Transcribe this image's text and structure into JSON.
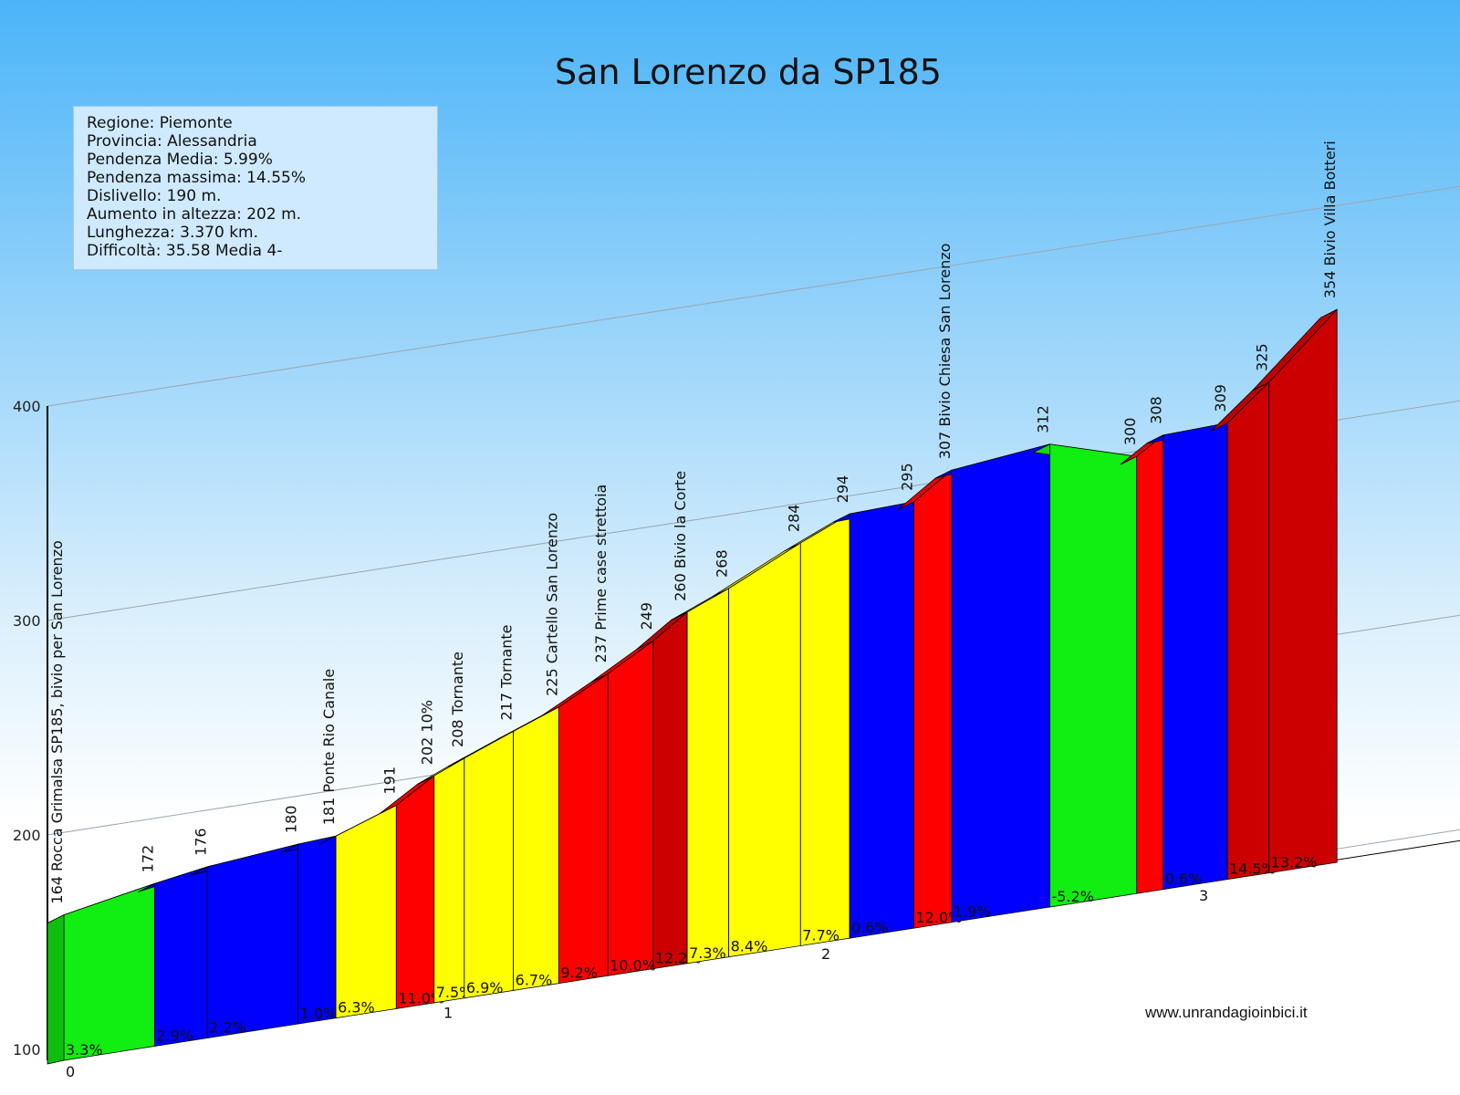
{
  "chart_data": {
    "type": "area",
    "title": "San Lorenzo da SP185",
    "y_ticks": [
      100,
      200,
      300,
      400
    ],
    "x_ticks": [
      0,
      1,
      2,
      3
    ],
    "ylim": [
      100,
      400
    ],
    "xlim": [
      0,
      3.37
    ],
    "unit_x": "km",
    "unit_y": "m",
    "colors": {
      "green": "#11ee11",
      "blue": "#0000ff",
      "yellow": "#ffff00",
      "red": "#ff0000",
      "darkred": "#cc0000",
      "sky_top": "#4cb4f8",
      "sky_bottom": "#ffffff"
    },
    "segments": [
      {
        "km_start": 0.0,
        "km_end": 0.24,
        "alt_start": 164,
        "alt_end": 172,
        "grade": "3.3%",
        "color": "green"
      },
      {
        "km_start": 0.24,
        "km_end": 0.38,
        "alt_start": 172,
        "alt_end": 176,
        "grade": "2.9%",
        "color": "blue"
      },
      {
        "km_start": 0.38,
        "km_end": 0.62,
        "alt_start": 176,
        "alt_end": 180,
        "grade": "2.2%",
        "color": "blue"
      },
      {
        "km_start": 0.62,
        "km_end": 0.72,
        "alt_start": 180,
        "alt_end": 181,
        "grade": "1.0%",
        "color": "blue"
      },
      {
        "km_start": 0.72,
        "km_end": 0.88,
        "alt_start": 181,
        "alt_end": 191,
        "grade": "6.3%",
        "color": "yellow"
      },
      {
        "km_start": 0.88,
        "km_end": 0.98,
        "alt_start": 191,
        "alt_end": 202,
        "grade": "11.0%",
        "color": "red"
      },
      {
        "km_start": 0.98,
        "km_end": 1.06,
        "alt_start": 202,
        "alt_end": 208,
        "grade": "7.5%",
        "color": "yellow"
      },
      {
        "km_start": 1.06,
        "km_end": 1.19,
        "alt_start": 208,
        "alt_end": 217,
        "grade": "6.9%",
        "color": "yellow"
      },
      {
        "km_start": 1.19,
        "km_end": 1.31,
        "alt_start": 217,
        "alt_end": 225,
        "grade": "6.7%",
        "color": "yellow"
      },
      {
        "km_start": 1.31,
        "km_end": 1.44,
        "alt_start": 225,
        "alt_end": 237,
        "grade": "9.2%",
        "color": "red"
      },
      {
        "km_start": 1.44,
        "km_end": 1.56,
        "alt_start": 237,
        "alt_end": 249,
        "grade": "10.0%",
        "color": "red"
      },
      {
        "km_start": 1.56,
        "km_end": 1.65,
        "alt_start": 249,
        "alt_end": 260,
        "grade": "12.2%",
        "color": "darkred"
      },
      {
        "km_start": 1.65,
        "km_end": 1.76,
        "alt_start": 260,
        "alt_end": 268,
        "grade": "7.3%",
        "color": "yellow"
      },
      {
        "km_start": 1.76,
        "km_end": 1.95,
        "alt_start": 268,
        "alt_end": 284,
        "grade": "8.4%",
        "color": "yellow"
      },
      {
        "km_start": 1.95,
        "km_end": 2.08,
        "alt_start": 284,
        "alt_end": 294,
        "grade": "7.7%",
        "color": "yellow"
      },
      {
        "km_start": 2.08,
        "km_end": 2.25,
        "alt_start": 294,
        "alt_end": 295,
        "grade": "0.6%",
        "color": "blue"
      },
      {
        "km_start": 2.25,
        "km_end": 2.35,
        "alt_start": 295,
        "alt_end": 307,
        "grade": "12.0%",
        "color": "red"
      },
      {
        "km_start": 2.35,
        "km_end": 2.61,
        "alt_start": 307,
        "alt_end": 312,
        "grade": "1.9%",
        "color": "blue"
      },
      {
        "km_start": 2.61,
        "km_end": 2.84,
        "alt_start": 312,
        "alt_end": 300,
        "grade": "-5.2%",
        "color": "green"
      },
      {
        "km_start": 2.84,
        "km_end": 2.91,
        "alt_start": 300,
        "alt_end": 308,
        "grade": "",
        "color": "red"
      },
      {
        "km_start": 2.91,
        "km_end": 3.08,
        "alt_start": 308,
        "alt_end": 309,
        "grade": "0.6%",
        "color": "blue"
      },
      {
        "km_start": 3.08,
        "km_end": 3.19,
        "alt_start": 309,
        "alt_end": 325,
        "grade": "14.5%",
        "color": "darkred"
      },
      {
        "km_start": 3.19,
        "km_end": 3.37,
        "alt_start": 325,
        "alt_end": 354,
        "grade": "13.2%",
        "color": "darkred"
      }
    ],
    "point_labels": [
      {
        "km": 0.0,
        "text": "164 Rocca Grimalsa SP185, bivio per San Lorenzo"
      },
      {
        "km": 0.24,
        "text": "172"
      },
      {
        "km": 0.38,
        "text": "176"
      },
      {
        "km": 0.62,
        "text": "180"
      },
      {
        "km": 0.72,
        "text": "181 Ponte Rio Canale"
      },
      {
        "km": 0.88,
        "text": "191"
      },
      {
        "km": 0.98,
        "text": "202 10%"
      },
      {
        "km": 1.06,
        "text": "208 Tornante"
      },
      {
        "km": 1.19,
        "text": "217 Tornante"
      },
      {
        "km": 1.31,
        "text": "225 Cartello San Lorenzo"
      },
      {
        "km": 1.44,
        "text": "237 Prime case strettoia"
      },
      {
        "km": 1.56,
        "text": "249"
      },
      {
        "km": 1.65,
        "text": "260 Bivio la Corte"
      },
      {
        "km": 1.76,
        "text": "268"
      },
      {
        "km": 1.95,
        "text": "284"
      },
      {
        "km": 2.08,
        "text": "294"
      },
      {
        "km": 2.25,
        "text": "295"
      },
      {
        "km": 2.35,
        "text": "307 Bivio Chiesa San Lorenzo"
      },
      {
        "km": 2.61,
        "text": "312"
      },
      {
        "km": 2.84,
        "text": "300"
      },
      {
        "km": 2.91,
        "text": "308"
      },
      {
        "km": 3.08,
        "text": "309"
      },
      {
        "km": 3.19,
        "text": "325"
      },
      {
        "km": 3.37,
        "text": "354 Bivio Villa Botteri"
      }
    ]
  },
  "info": {
    "lines": [
      "Regione: Piemonte",
      "Provincia: Alessandria",
      "Pendenza Media: 5.99%",
      "Pendenza massima: 14.55%",
      "Dislivello: 190 m.",
      "Aumento in altezza: 202 m.",
      "Lunghezza:  3.370 km.",
      "Difficoltà: 35.58 Media 4-"
    ]
  },
  "website": "www.unrandagioinbici.it"
}
